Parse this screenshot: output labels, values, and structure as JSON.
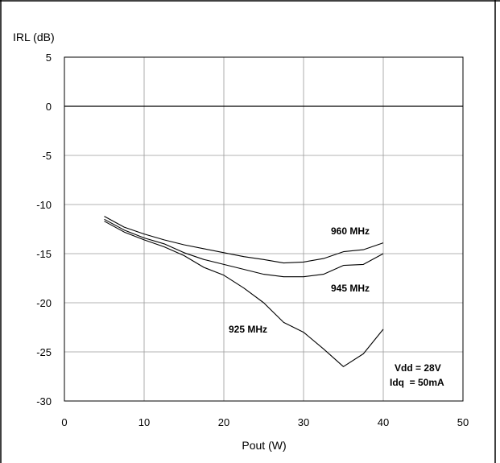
{
  "chart_data": {
    "type": "line",
    "title": "",
    "xlabel": "Pout (W)",
    "ylabel": "IRL (dB)",
    "xlim": [
      0,
      50
    ],
    "ylim": [
      -30,
      5
    ],
    "xticks": [
      0,
      10,
      20,
      30,
      40,
      50
    ],
    "yticks": [
      5,
      0,
      -5,
      -10,
      -15,
      -20,
      -25,
      -30
    ],
    "grid": true,
    "series": [
      {
        "name": "960 MHz",
        "x": [
          5,
          7.5,
          10,
          12.5,
          15,
          17.5,
          20,
          22.5,
          25,
          27.5,
          30,
          32.5,
          35,
          37.5,
          40
        ],
        "y": [
          -11.2,
          -12.3,
          -13.0,
          -13.6,
          -14.1,
          -14.5,
          -14.9,
          -15.3,
          -15.6,
          -15.95,
          -15.85,
          -15.5,
          -14.8,
          -14.6,
          -13.9
        ]
      },
      {
        "name": "945 MHz",
        "x": [
          5,
          7.5,
          10,
          12.5,
          15,
          17.5,
          20,
          22.5,
          25,
          27.5,
          30,
          32.5,
          35,
          37.5,
          40
        ],
        "y": [
          -11.5,
          -12.6,
          -13.4,
          -14.0,
          -14.9,
          -15.6,
          -16.1,
          -16.6,
          -17.1,
          -17.35,
          -17.35,
          -17.1,
          -16.2,
          -16.1,
          -15.0
        ]
      },
      {
        "name": "925 MHz",
        "x": [
          5,
          7.5,
          10,
          12.5,
          15,
          17.5,
          20,
          22.5,
          25,
          27.5,
          30,
          32.5,
          35,
          37.5,
          40
        ],
        "y": [
          -11.7,
          -12.8,
          -13.6,
          -14.3,
          -15.2,
          -16.4,
          -17.2,
          -18.5,
          -20.0,
          -22.0,
          -23.0,
          -24.7,
          -26.5,
          -25.2,
          -22.7
        ]
      }
    ],
    "annotations": [
      "Vdd = 28V",
      "Idq  = 50mA"
    ]
  }
}
